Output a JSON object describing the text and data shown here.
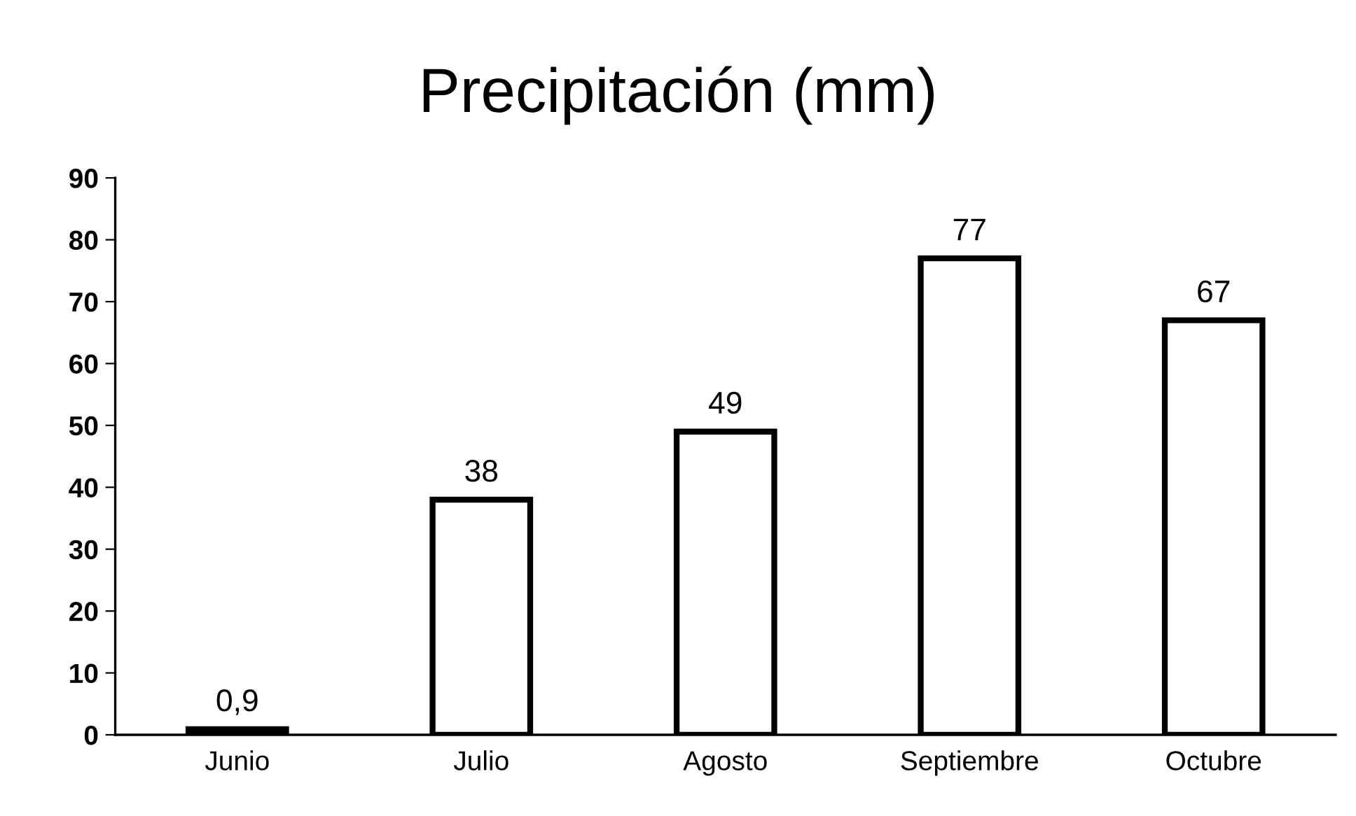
{
  "chart_data": {
    "type": "bar",
    "title": "Precipitación (mm)",
    "categories": [
      "Junio",
      "Julio",
      "Agosto",
      "Septiembre",
      "Octubre"
    ],
    "values": [
      0.9,
      38,
      49,
      77,
      67
    ],
    "value_labels": [
      "0,9",
      "38",
      "49",
      "77",
      "67"
    ],
    "color": "#ffffff",
    "ylim": [
      0,
      90
    ],
    "yticks": [
      0,
      10,
      20,
      30,
      40,
      50,
      60,
      70,
      80,
      90
    ],
    "grid": false
  }
}
